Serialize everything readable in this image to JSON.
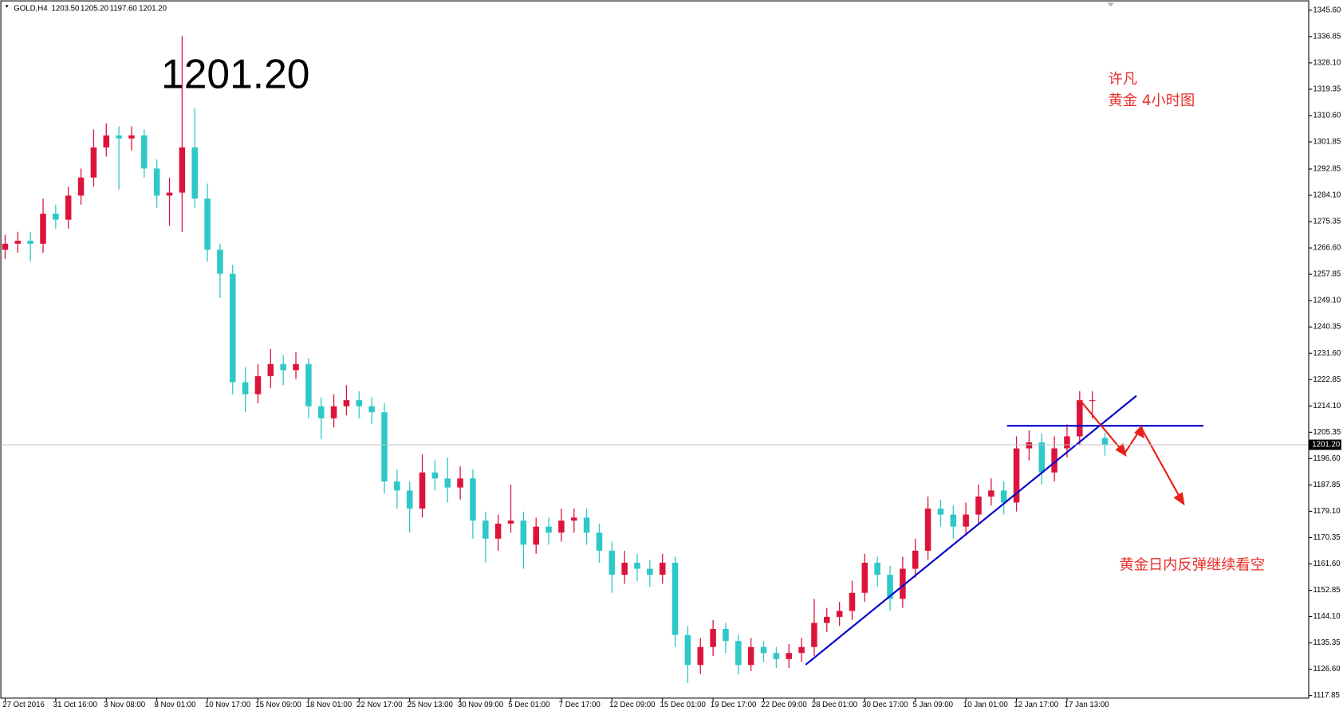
{
  "chart_data": {
    "type": "candlestick",
    "header": {
      "symbol": "GOLD,H4",
      "ohlc": [
        "1203.50",
        "1205.20",
        "1197.60",
        "1201.20"
      ]
    },
    "annotations": {
      "big_price": "1201.20",
      "author": "许凡",
      "subtitle": "黄金 4小时图",
      "comment": "黄金日内反弹继续看空"
    },
    "up_color": "#dc143c",
    "down_color": "#2ec8c8",
    "grid": false,
    "last_price": {
      "value": 1201.2,
      "label": "1201.20"
    },
    "ylim": [
      1117.0,
      1349.0
    ],
    "yticks": [
      {
        "value": 1345.6,
        "label": "1345.60"
      },
      {
        "value": 1336.85,
        "label": "1336.85"
      },
      {
        "value": 1328.1,
        "label": "1328.10"
      },
      {
        "value": 1319.35,
        "label": "1319.35"
      },
      {
        "value": 1310.6,
        "label": "1310.60"
      },
      {
        "value": 1301.85,
        "label": "1301.85"
      },
      {
        "value": 1292.85,
        "label": "1292.85"
      },
      {
        "value": 1284.1,
        "label": "1284.10"
      },
      {
        "value": 1275.35,
        "label": "1275.35"
      },
      {
        "value": 1266.6,
        "label": "1266.60"
      },
      {
        "value": 1257.85,
        "label": "1257.85"
      },
      {
        "value": 1249.1,
        "label": "1249.10"
      },
      {
        "value": 1240.35,
        "label": "1240.35"
      },
      {
        "value": 1231.6,
        "label": "1231.60"
      },
      {
        "value": 1222.85,
        "label": "1222.85"
      },
      {
        "value": 1214.1,
        "label": "1214.10"
      },
      {
        "value": 1205.35,
        "label": "1205.35"
      },
      {
        "value": 1196.6,
        "label": "1196.60"
      },
      {
        "value": 1187.85,
        "label": "1187.85"
      },
      {
        "value": 1179.1,
        "label": "1179.10"
      },
      {
        "value": 1170.35,
        "label": "1170.35"
      },
      {
        "value": 1161.6,
        "label": "1161.60"
      },
      {
        "value": 1152.85,
        "label": "1152.85"
      },
      {
        "value": 1144.1,
        "label": "1144.10"
      },
      {
        "value": 1135.35,
        "label": "1135.35"
      },
      {
        "value": 1126.6,
        "label": "1126.60"
      },
      {
        "value": 1117.85,
        "label": "1117.85"
      }
    ],
    "categories": [
      "27 Oct 2016",
      null,
      null,
      null,
      "31 Oct 16:00",
      null,
      null,
      null,
      "3 Nov 08:00",
      null,
      null,
      null,
      "8 Nov 01:00",
      null,
      null,
      null,
      "10 Nov 17:00",
      null,
      null,
      null,
      "15 Nov 09:00",
      null,
      null,
      null,
      "18 Nov 01:00",
      null,
      null,
      null,
      "22 Nov 17:00",
      null,
      null,
      null,
      "25 Nov 13:00",
      null,
      null,
      null,
      "30 Nov 09:00",
      null,
      null,
      null,
      "5 Dec 01:00",
      null,
      null,
      null,
      "7 Dec 17:00",
      null,
      null,
      null,
      "12 Dec 09:00",
      null,
      null,
      null,
      "15 Dec 01:00",
      null,
      null,
      null,
      "19 Dec 17:00",
      null,
      null,
      null,
      "22 Dec 09:00",
      null,
      null,
      null,
      "28 Dec 01:00",
      null,
      null,
      null,
      "30 Dec 17:00",
      null,
      null,
      null,
      "5 Jan 09:00",
      null,
      null,
      null,
      "10 Jan 01:00",
      null,
      null,
      null,
      "12 Jan 17:00",
      null,
      null,
      null,
      "17 Jan 13:00",
      null,
      null,
      null
    ],
    "open": [
      1266,
      1268,
      1269,
      1268,
      1278,
      1276,
      1284,
      1290,
      1300,
      1304,
      1303,
      1304,
      1293,
      1284,
      1285,
      1300,
      1283,
      1266,
      1258,
      1222,
      1218,
      1224,
      1228,
      1226,
      1228,
      1214,
      1210,
      1214,
      1216,
      1214,
      1212,
      1189,
      1186,
      1180,
      1192,
      1190,
      1187,
      1190,
      1176,
      1170,
      1175,
      1176,
      1168,
      1174,
      1172,
      1176,
      1177,
      1172,
      1166,
      1158,
      1162,
      1160,
      1158,
      1162,
      1138,
      1128,
      1134,
      1140,
      1136,
      1128,
      1134,
      1132,
      1130,
      1132,
      1134,
      1142,
      1144,
      1146,
      1152,
      1162,
      1158,
      1150,
      1160,
      1166,
      1180,
      1178,
      1174,
      1178,
      1184,
      1186,
      1182,
      1200,
      1202,
      1192,
      1200,
      1204,
      1216,
      1203.5
    ],
    "high": [
      1271,
      1272,
      1272,
      1283,
      1281,
      1287,
      1293,
      1306,
      1308,
      1307,
      1307,
      1306,
      1296,
      1290,
      1337,
      1313,
      1288,
      1268,
      1261,
      1227,
      1228,
      1233,
      1231,
      1232,
      1230,
      1217,
      1218,
      1221,
      1219,
      1217,
      1215,
      1193,
      1189,
      1198,
      1196,
      1197,
      1194,
      1193,
      1179,
      1178,
      1188,
      1179,
      1177,
      1177,
      1180,
      1180,
      1180,
      1175,
      1169,
      1166,
      1165,
      1163,
      1165,
      1164,
      1141,
      1137,
      1143,
      1142,
      1138,
      1137,
      1136,
      1134,
      1135,
      1137,
      1150,
      1147,
      1149,
      1156,
      1165,
      1164,
      1161,
      1164,
      1170,
      1184,
      1183,
      1181,
      1182,
      1188,
      1190,
      1189,
      1204,
      1206,
      1205,
      1204,
      1208,
      1219,
      1219,
      1205.2
    ],
    "low": [
      1263,
      1265,
      1262,
      1265,
      1273,
      1273,
      1281,
      1287,
      1297,
      1286,
      1299,
      1290,
      1280,
      1274,
      1272,
      1280,
      1262,
      1250,
      1218,
      1212,
      1215,
      1220,
      1221,
      1223,
      1210,
      1203,
      1207,
      1211,
      1210,
      1208,
      1185,
      1180,
      1172,
      1177,
      1186,
      1182,
      1183,
      1170,
      1162,
      1166,
      1172,
      1160,
      1165,
      1168,
      1169,
      1172,
      1168,
      1162,
      1152,
      1155,
      1156,
      1154,
      1155,
      1134,
      1122,
      1125,
      1131,
      1132,
      1125,
      1126,
      1129,
      1127,
      1127,
      1129,
      1131,
      1139,
      1141,
      1143,
      1149,
      1154,
      1146,
      1147,
      1157,
      1163,
      1174,
      1170,
      1171,
      1175,
      1181,
      1178,
      1179,
      1196,
      1188,
      1189,
      1197,
      1201,
      1210,
      1197.6
    ],
    "close": [
      1268,
      1269,
      1268,
      1278,
      1276,
      1284,
      1290,
      1300,
      1304,
      1303,
      1304,
      1293,
      1284,
      1285,
      1300,
      1283,
      1266,
      1258,
      1222,
      1218,
      1224,
      1228,
      1226,
      1228,
      1214,
      1210,
      1214,
      1216,
      1214,
      1212,
      1189,
      1186,
      1180,
      1192,
      1190,
      1187,
      1190,
      1176,
      1170,
      1175,
      1176,
      1168,
      1174,
      1172,
      1176,
      1177,
      1172,
      1166,
      1158,
      1162,
      1160,
      1158,
      1162,
      1138,
      1128,
      1134,
      1140,
      1136,
      1128,
      1134,
      1132,
      1130,
      1132,
      1134,
      1142,
      1144,
      1146,
      1152,
      1162,
      1158,
      1150,
      1160,
      1166,
      1180,
      1178,
      1174,
      1178,
      1184,
      1186,
      1182,
      1200,
      1202,
      1192,
      1200,
      1204,
      1216,
      1216,
      1201.2
    ]
  }
}
